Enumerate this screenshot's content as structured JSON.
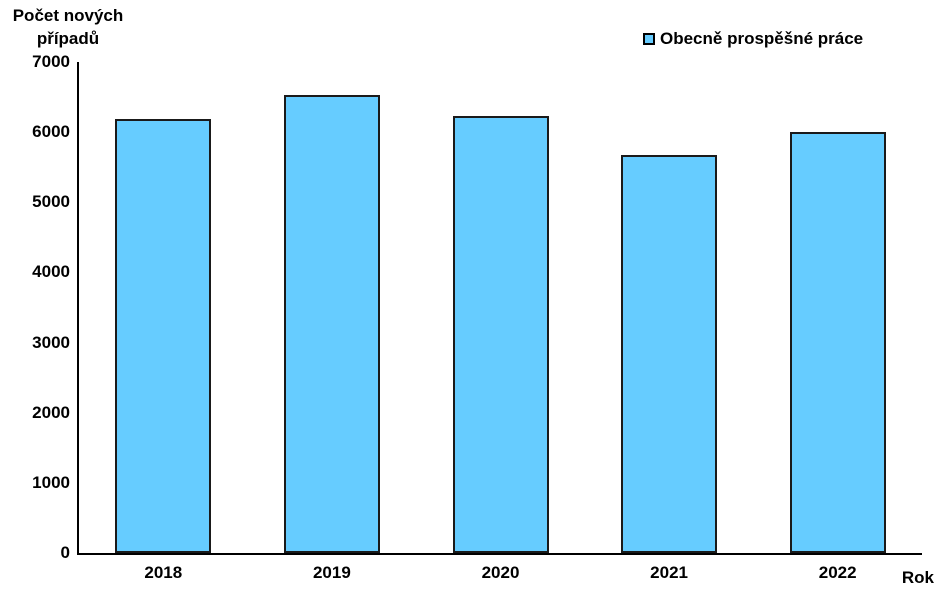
{
  "title": {
    "line1": "Počet nových",
    "line2": "případů"
  },
  "legend": {
    "label": "Obecně prospěšné práce"
  },
  "axes": {
    "x_label": "Rok"
  },
  "colors": {
    "bar_fill": "#66CCFF",
    "bar_border": "#1A1A1A",
    "axis": "#000000",
    "text": "#000000"
  },
  "chart_data": {
    "type": "bar",
    "categories": [
      "2018",
      "2019",
      "2020",
      "2021",
      "2022"
    ],
    "series": [
      {
        "name": "Obecně prospěšné práce",
        "values": [
          6190,
          6530,
          6230,
          5680,
          6000
        ]
      }
    ],
    "title": "Počet nových případů",
    "xlabel": "Rok",
    "ylabel": "Počet nových případů",
    "ylim": [
      0,
      7000
    ],
    "ytick_step": 1000,
    "grid": false,
    "legend_position": "top-right",
    "bar_color": "#66CCFF"
  }
}
